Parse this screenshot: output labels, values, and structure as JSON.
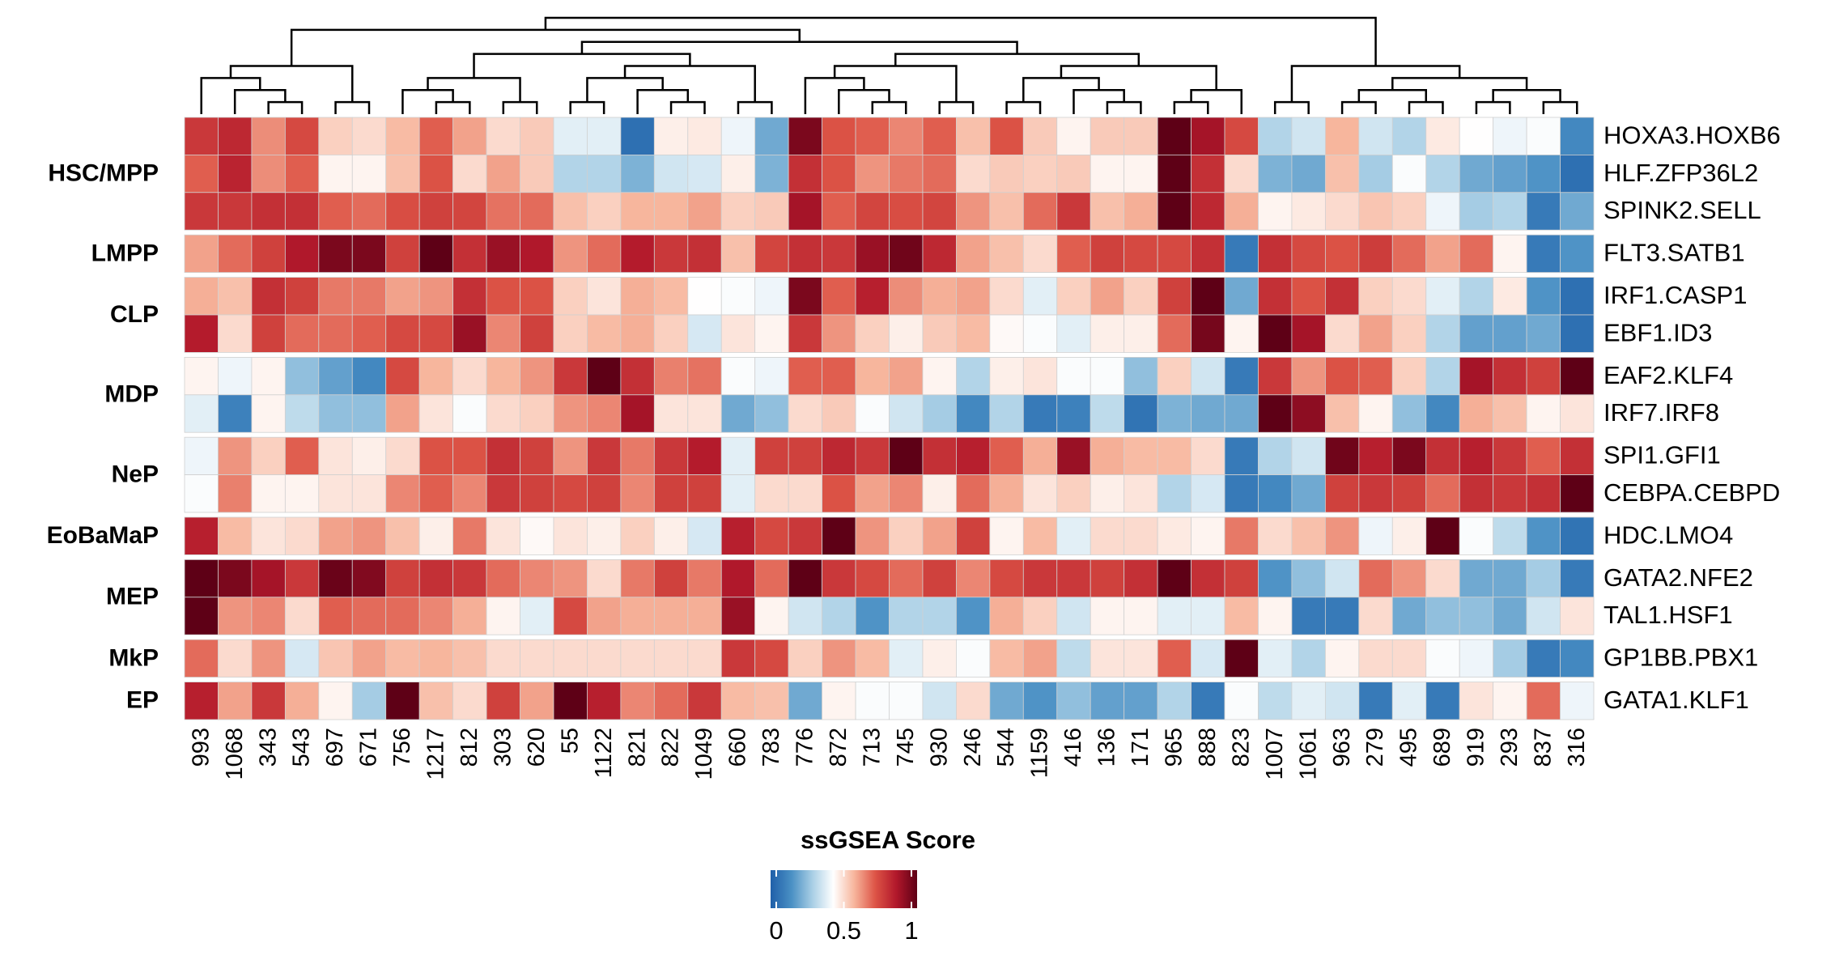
{
  "chart_data": {
    "type": "heatmap",
    "columns": [
      "993",
      "1068",
      "343",
      "543",
      "697",
      "671",
      "756",
      "1217",
      "812",
      "303",
      "620",
      "55",
      "1122",
      "821",
      "822",
      "1049",
      "660",
      "783",
      "776",
      "872",
      "713",
      "745",
      "930",
      "246",
      "544",
      "1159",
      "416",
      "136",
      "171",
      "965",
      "888",
      "823",
      "1007",
      "1061",
      "963",
      "279",
      "495",
      "689",
      "919",
      "293",
      "837",
      "316"
    ],
    "groups": [
      {
        "name": "HSC/MPP",
        "rows": [
          {
            "name": "HOXA3.HOXB6",
            "values": [
              0.78,
              0.82,
              0.63,
              0.74,
              0.52,
              0.5,
              0.56,
              0.7,
              0.6,
              0.5,
              0.53,
              0.38,
              0.38,
              0.05,
              0.46,
              0.47,
              0.4,
              0.2,
              0.95,
              0.72,
              0.7,
              0.64,
              0.7,
              0.55,
              0.72,
              0.53,
              0.45,
              0.53,
              0.53,
              1.0,
              0.88,
              0.74,
              0.3,
              0.35,
              0.57,
              0.35,
              0.3,
              0.47,
              0.43,
              0.4,
              0.42,
              0.12
            ]
          },
          {
            "name": "HLF.ZFP36L2",
            "values": [
              0.7,
              0.83,
              0.63,
              0.7,
              0.45,
              0.45,
              0.55,
              0.72,
              0.5,
              0.6,
              0.53,
              0.3,
              0.3,
              0.22,
              0.35,
              0.36,
              0.46,
              0.22,
              0.8,
              0.72,
              0.62,
              0.66,
              0.68,
              0.5,
              0.53,
              0.52,
              0.53,
              0.45,
              0.45,
              1.0,
              0.8,
              0.5,
              0.22,
              0.2,
              0.55,
              0.28,
              0.42,
              0.3,
              0.2,
              0.18,
              0.15,
              0.05
            ]
          },
          {
            "name": "SPINK2.SELL",
            "values": [
              0.78,
              0.78,
              0.8,
              0.8,
              0.7,
              0.68,
              0.73,
              0.76,
              0.75,
              0.67,
              0.68,
              0.55,
              0.52,
              0.57,
              0.57,
              0.6,
              0.52,
              0.53,
              0.88,
              0.7,
              0.75,
              0.73,
              0.75,
              0.62,
              0.55,
              0.68,
              0.78,
              0.55,
              0.58,
              1.0,
              0.82,
              0.58,
              0.45,
              0.47,
              0.5,
              0.54,
              0.52,
              0.4,
              0.28,
              0.3,
              0.08,
              0.2
            ]
          }
        ]
      },
      {
        "name": "LMPP",
        "rows": [
          {
            "name": "FLT3.SATB1",
            "values": [
              0.6,
              0.68,
              0.76,
              0.86,
              0.95,
              0.95,
              0.76,
              1.0,
              0.8,
              0.9,
              0.86,
              0.62,
              0.68,
              0.85,
              0.78,
              0.8,
              0.55,
              0.75,
              0.8,
              0.78,
              0.9,
              0.97,
              0.82,
              0.6,
              0.55,
              0.5,
              0.7,
              0.76,
              0.74,
              0.74,
              0.8,
              0.08,
              0.8,
              0.74,
              0.72,
              0.77,
              0.68,
              0.6,
              0.68,
              0.45,
              0.08,
              0.15
            ]
          }
        ]
      },
      {
        "name": "CLP",
        "rows": [
          {
            "name": "IRF1.CASP1",
            "values": [
              0.58,
              0.55,
              0.8,
              0.76,
              0.66,
              0.66,
              0.6,
              0.62,
              0.8,
              0.72,
              0.72,
              0.52,
              0.48,
              0.58,
              0.56,
              0.43,
              0.42,
              0.4,
              0.95,
              0.7,
              0.84,
              0.63,
              0.58,
              0.6,
              0.5,
              0.38,
              0.52,
              0.6,
              0.52,
              0.76,
              1.0,
              0.2,
              0.8,
              0.72,
              0.8,
              0.52,
              0.5,
              0.38,
              0.3,
              0.47,
              0.15,
              0.05
            ]
          },
          {
            "name": "EBF1.ID3",
            "values": [
              0.85,
              0.5,
              0.76,
              0.68,
              0.68,
              0.7,
              0.74,
              0.74,
              0.9,
              0.64,
              0.76,
              0.52,
              0.56,
              0.58,
              0.52,
              0.36,
              0.48,
              0.45,
              0.78,
              0.62,
              0.52,
              0.46,
              0.53,
              0.56,
              0.44,
              0.42,
              0.38,
              0.46,
              0.46,
              0.68,
              0.96,
              0.45,
              1.0,
              0.88,
              0.5,
              0.6,
              0.52,
              0.3,
              0.18,
              0.18,
              0.2,
              0.05
            ]
          }
        ]
      },
      {
        "name": "MDP",
        "rows": [
          {
            "name": "EAF2.KLF4",
            "values": [
              0.45,
              0.4,
              0.45,
              0.25,
              0.18,
              0.12,
              0.74,
              0.57,
              0.5,
              0.57,
              0.62,
              0.78,
              1.0,
              0.8,
              0.65,
              0.67,
              0.42,
              0.4,
              0.7,
              0.7,
              0.57,
              0.6,
              0.45,
              0.3,
              0.46,
              0.48,
              0.42,
              0.42,
              0.25,
              0.52,
              0.35,
              0.08,
              0.78,
              0.62,
              0.72,
              0.7,
              0.52,
              0.3,
              0.88,
              0.8,
              0.76,
              1.0
            ]
          },
          {
            "name": "IRF7.IRF8",
            "values": [
              0.38,
              0.1,
              0.45,
              0.32,
              0.25,
              0.25,
              0.6,
              0.48,
              0.42,
              0.5,
              0.52,
              0.62,
              0.64,
              0.88,
              0.48,
              0.48,
              0.2,
              0.25,
              0.5,
              0.53,
              0.42,
              0.35,
              0.28,
              0.12,
              0.3,
              0.08,
              0.1,
              0.32,
              0.06,
              0.22,
              0.2,
              0.2,
              1.0,
              0.92,
              0.55,
              0.45,
              0.25,
              0.12,
              0.58,
              0.55,
              0.45,
              0.48
            ]
          }
        ]
      },
      {
        "name": "NeP",
        "rows": [
          {
            "name": "SPI1.GFI1",
            "values": [
              0.4,
              0.62,
              0.52,
              0.7,
              0.48,
              0.46,
              0.5,
              0.72,
              0.72,
              0.8,
              0.76,
              0.62,
              0.78,
              0.66,
              0.78,
              0.85,
              0.38,
              0.76,
              0.76,
              0.82,
              0.78,
              1.0,
              0.8,
              0.84,
              0.7,
              0.58,
              0.9,
              0.58,
              0.56,
              0.56,
              0.5,
              0.08,
              0.3,
              0.35,
              0.97,
              0.84,
              0.95,
              0.8,
              0.84,
              0.78,
              0.7,
              0.8
            ]
          },
          {
            "name": "CEBPA.CEBPD",
            "values": [
              0.42,
              0.65,
              0.45,
              0.45,
              0.48,
              0.48,
              0.64,
              0.7,
              0.64,
              0.78,
              0.76,
              0.74,
              0.76,
              0.64,
              0.76,
              0.76,
              0.38,
              0.5,
              0.5,
              0.72,
              0.6,
              0.64,
              0.46,
              0.68,
              0.58,
              0.48,
              0.52,
              0.46,
              0.48,
              0.3,
              0.36,
              0.08,
              0.12,
              0.2,
              0.76,
              0.78,
              0.76,
              0.68,
              0.8,
              0.78,
              0.8,
              1.0
            ]
          }
        ]
      },
      {
        "name": "EoBaMaP",
        "rows": [
          {
            "name": "HDC.LMO4",
            "values": [
              0.84,
              0.56,
              0.48,
              0.5,
              0.6,
              0.62,
              0.55,
              0.46,
              0.66,
              0.48,
              0.44,
              0.48,
              0.46,
              0.52,
              0.46,
              0.36,
              0.84,
              0.74,
              0.78,
              1.0,
              0.62,
              0.52,
              0.6,
              0.76,
              0.45,
              0.56,
              0.38,
              0.5,
              0.5,
              0.47,
              0.45,
              0.66,
              0.5,
              0.55,
              0.62,
              0.4,
              0.46,
              1.0,
              0.42,
              0.32,
              0.15,
              0.06
            ]
          }
        ]
      },
      {
        "name": "MEP",
        "rows": [
          {
            "name": "GATA2.NFE2",
            "values": [
              1.0,
              0.95,
              0.88,
              0.78,
              0.98,
              0.94,
              0.76,
              0.8,
              0.78,
              0.68,
              0.64,
              0.62,
              0.5,
              0.66,
              0.76,
              0.66,
              0.86,
              0.68,
              1.0,
              0.78,
              0.74,
              0.68,
              0.76,
              0.64,
              0.74,
              0.78,
              0.78,
              0.76,
              0.8,
              1.0,
              0.8,
              0.76,
              0.15,
              0.25,
              0.35,
              0.68,
              0.62,
              0.5,
              0.2,
              0.2,
              0.28,
              0.08
            ]
          },
          {
            "name": "TAL1.HSF1",
            "values": [
              1.0,
              0.62,
              0.64,
              0.5,
              0.7,
              0.68,
              0.68,
              0.64,
              0.58,
              0.45,
              0.38,
              0.74,
              0.6,
              0.58,
              0.58,
              0.58,
              0.9,
              0.45,
              0.35,
              0.3,
              0.15,
              0.3,
              0.3,
              0.15,
              0.58,
              0.52,
              0.35,
              0.45,
              0.45,
              0.38,
              0.38,
              0.56,
              0.45,
              0.08,
              0.08,
              0.5,
              0.2,
              0.25,
              0.25,
              0.2,
              0.35,
              0.48
            ]
          }
        ]
      },
      {
        "name": "MkP",
        "rows": [
          {
            "name": "GP1BB.PBX1",
            "values": [
              0.68,
              0.5,
              0.62,
              0.36,
              0.54,
              0.6,
              0.56,
              0.57,
              0.55,
              0.5,
              0.5,
              0.5,
              0.5,
              0.5,
              0.5,
              0.5,
              0.78,
              0.74,
              0.52,
              0.62,
              0.56,
              0.38,
              0.46,
              0.42,
              0.56,
              0.6,
              0.32,
              0.48,
              0.48,
              0.7,
              0.36,
              1.0,
              0.38,
              0.3,
              0.45,
              0.5,
              0.5,
              0.42,
              0.4,
              0.28,
              0.08,
              0.12
            ]
          }
        ]
      },
      {
        "name": "EP",
        "rows": [
          {
            "name": "GATA1.KLF1",
            "values": [
              0.84,
              0.6,
              0.78,
              0.58,
              0.45,
              0.28,
              1.0,
              0.55,
              0.5,
              0.76,
              0.6,
              1.0,
              0.84,
              0.64,
              0.68,
              0.78,
              0.56,
              0.55,
              0.2,
              0.45,
              0.42,
              0.42,
              0.35,
              0.5,
              0.2,
              0.15,
              0.25,
              0.18,
              0.18,
              0.3,
              0.08,
              0.42,
              0.32,
              0.38,
              0.35,
              0.08,
              0.38,
              0.08,
              0.48,
              0.45,
              0.68,
              0.4
            ]
          }
        ]
      }
    ],
    "legend_title": "ssGSEA Score",
    "colorbar": {
      "lim": [
        0,
        1
      ],
      "ticks": [
        0,
        0.5,
        1
      ]
    },
    "palette": [
      "#1f5fa9",
      "#4a90c4",
      "#a9cfe5",
      "#ffffff",
      "#f7b59c",
      "#dd5446",
      "#b2182b",
      "#5e0016"
    ]
  }
}
